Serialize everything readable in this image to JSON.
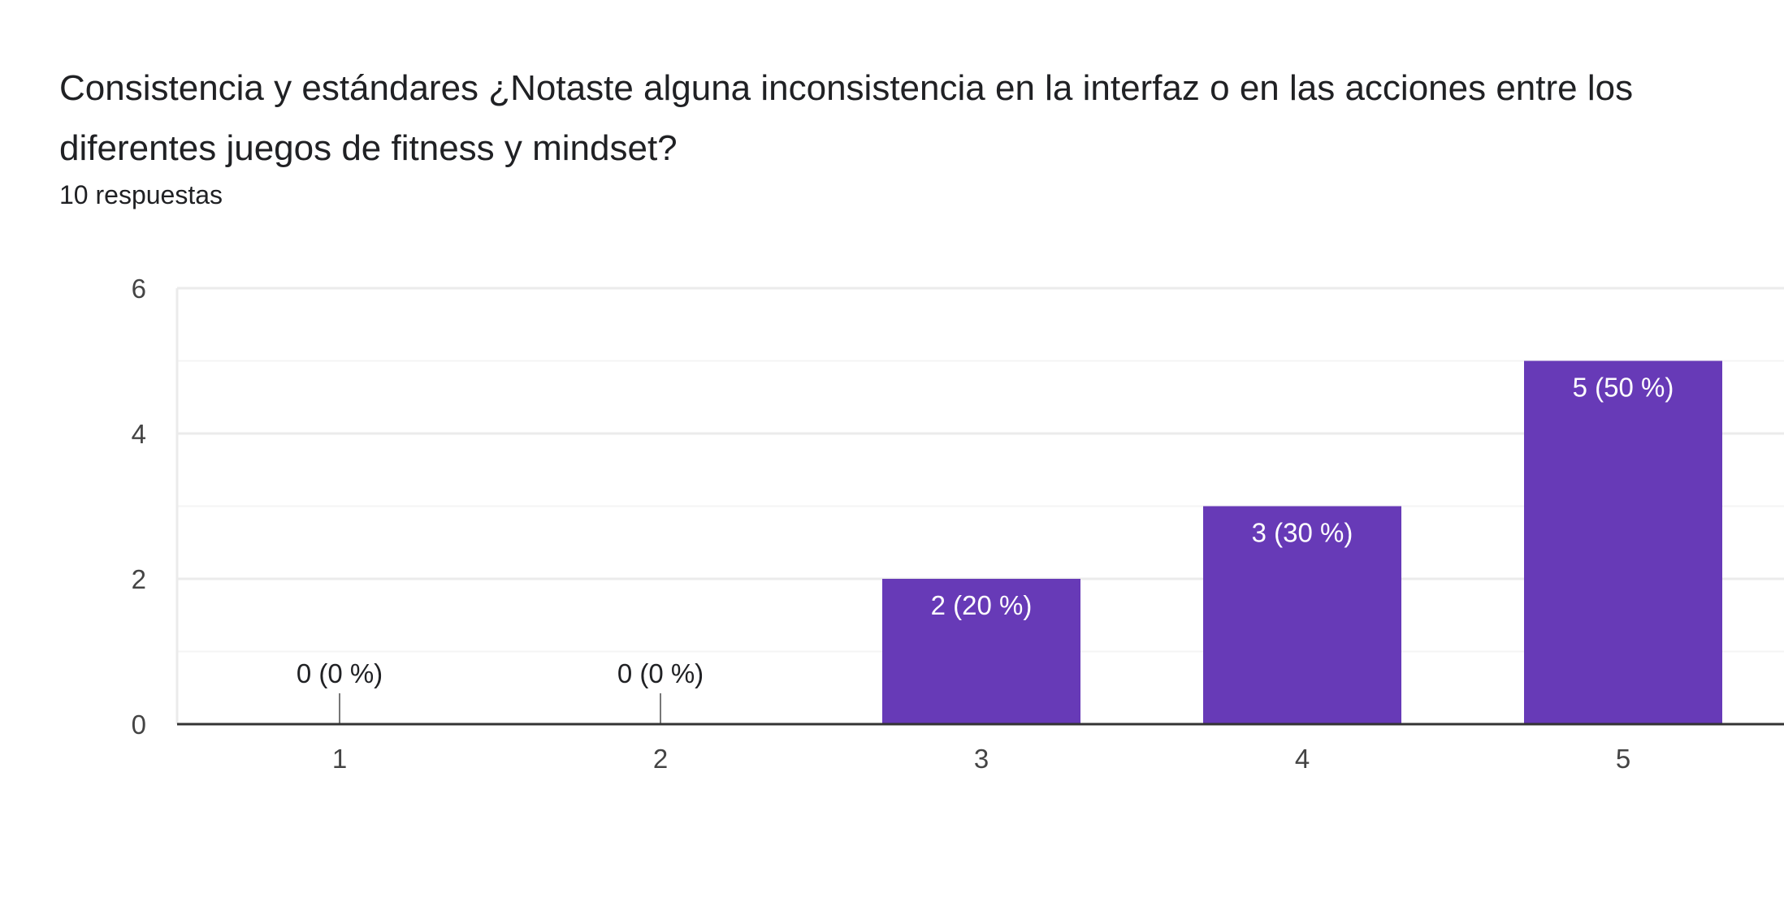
{
  "question": {
    "title": "Consistencia y estándares ¿Notaste alguna inconsistencia en la interfaz o en las acciones entre los diferentes juegos de fitness y mindset?",
    "response_count": "10 respuestas"
  },
  "colors": {
    "bar": "#673ab7",
    "gridline": "#ebebeb",
    "minor_gridline": "#f4f4f4",
    "axis": "#333333"
  },
  "chart_data": {
    "type": "bar",
    "categories": [
      "1",
      "2",
      "3",
      "4",
      "5"
    ],
    "values": [
      0,
      0,
      2,
      3,
      5
    ],
    "data_labels": [
      "0 (0 %)",
      "0 (0 %)",
      "2 (20 %)",
      "3 (30 %)",
      "5 (50 %)"
    ],
    "ylim": [
      0,
      6
    ],
    "yticks": [
      0,
      2,
      4,
      6
    ],
    "title": "",
    "xlabel": "",
    "ylabel": "",
    "grid": true
  }
}
